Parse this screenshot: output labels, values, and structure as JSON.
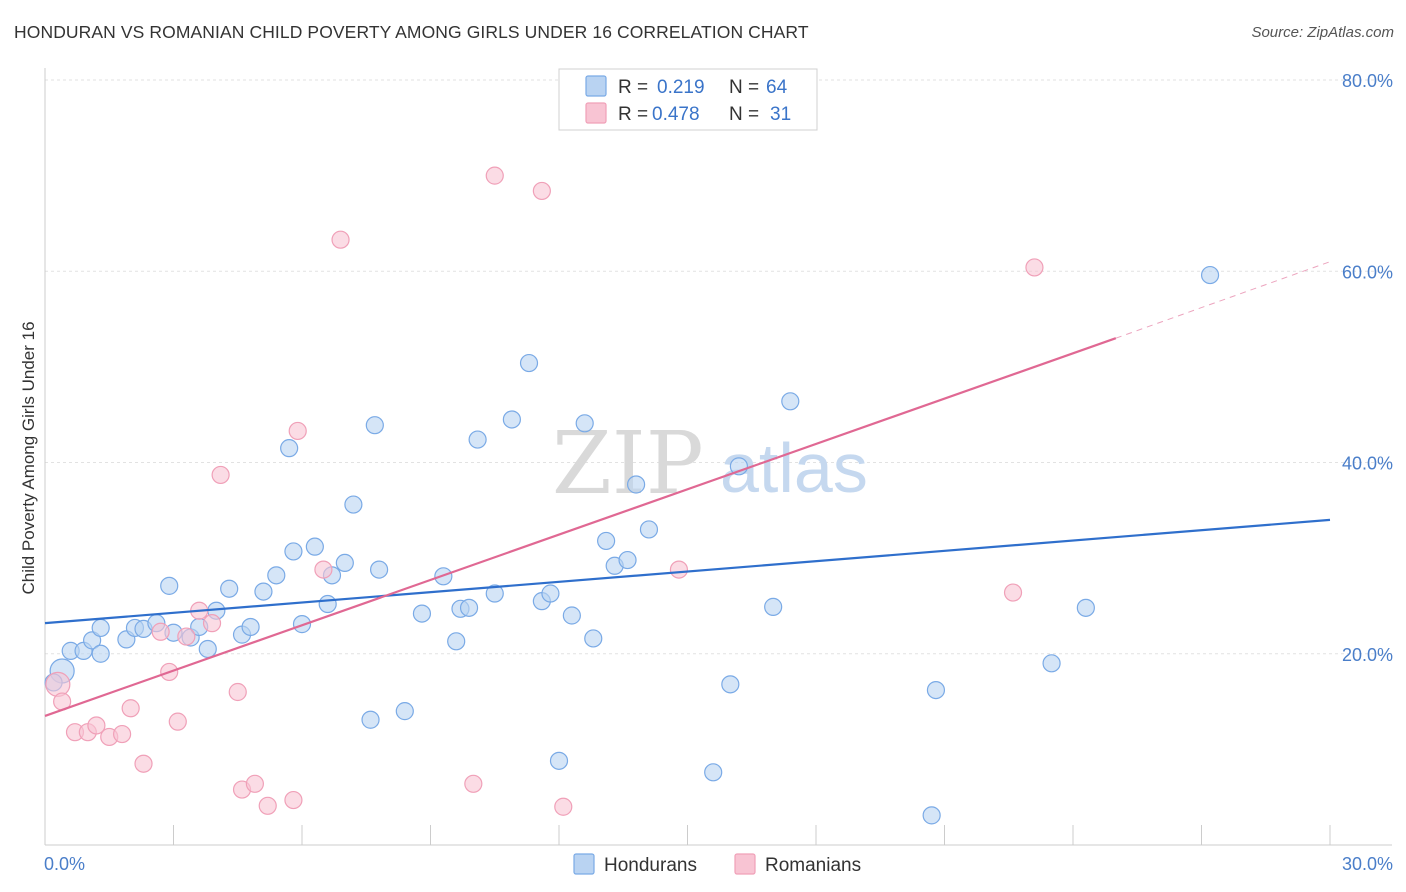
{
  "title": "HONDURAN VS ROMANIAN CHILD POVERTY AMONG GIRLS UNDER 16 CORRELATION CHART",
  "source": "Source: ZipAtlas.com",
  "watermark": {
    "zip": "ZIP",
    "atlas": "atlas"
  },
  "chart_data": {
    "type": "scatter",
    "ylabel": "Child Poverty Among Girls Under 16",
    "xlim": [
      0,
      30
    ],
    "ylim": [
      0,
      80
    ],
    "x_tick_labels": [
      {
        "value": 0,
        "label": "0.0%"
      },
      {
        "value": 30,
        "label": "30.0%"
      }
    ],
    "y_tick_labels": [
      {
        "value": 20,
        "label": "20.0%"
      },
      {
        "value": 40,
        "label": "40.0%"
      },
      {
        "value": 60,
        "label": "60.0%"
      },
      {
        "value": 80,
        "label": "80.0%"
      }
    ],
    "grid": true,
    "legend_position": "top-center",
    "series": [
      {
        "name": "Hondurans",
        "color": "#7aaae6",
        "fill": "#b9d3f2",
        "R": "0.219",
        "N": "64",
        "trend": {
          "x0": 0,
          "y0": 23.2,
          "x1": 30,
          "y1": 34.0,
          "color": "#2f6fcc"
        },
        "points": [
          [
            0.4,
            18.2
          ],
          [
            0.2,
            17.0
          ],
          [
            0.6,
            20.3
          ],
          [
            0.9,
            20.3
          ],
          [
            1.1,
            21.4
          ],
          [
            1.3,
            22.7
          ],
          [
            1.3,
            20.0
          ],
          [
            1.9,
            21.5
          ],
          [
            2.1,
            22.7
          ],
          [
            2.3,
            22.6
          ],
          [
            2.6,
            23.2
          ],
          [
            2.9,
            27.1
          ],
          [
            3.0,
            22.2
          ],
          [
            3.4,
            21.7
          ],
          [
            3.6,
            22.8
          ],
          [
            3.8,
            20.5
          ],
          [
            4.0,
            24.5
          ],
          [
            4.3,
            26.8
          ],
          [
            4.6,
            22.0
          ],
          [
            4.8,
            22.8
          ],
          [
            5.1,
            26.5
          ],
          [
            5.4,
            28.2
          ],
          [
            5.7,
            41.5
          ],
          [
            5.8,
            30.7
          ],
          [
            6.0,
            23.1
          ],
          [
            6.3,
            31.2
          ],
          [
            6.6,
            25.2
          ],
          [
            6.7,
            28.2
          ],
          [
            7.0,
            29.5
          ],
          [
            7.2,
            35.6
          ],
          [
            7.6,
            13.1
          ],
          [
            7.7,
            43.9
          ],
          [
            7.8,
            28.8
          ],
          [
            8.4,
            14.0
          ],
          [
            8.8,
            24.2
          ],
          [
            9.3,
            28.1
          ],
          [
            9.6,
            21.3
          ],
          [
            9.7,
            24.7
          ],
          [
            9.9,
            24.8
          ],
          [
            10.1,
            42.4
          ],
          [
            10.5,
            26.3
          ],
          [
            10.9,
            44.5
          ],
          [
            11.3,
            50.4
          ],
          [
            11.6,
            25.5
          ],
          [
            11.8,
            26.3
          ],
          [
            12.0,
            8.8
          ],
          [
            12.3,
            24.0
          ],
          [
            12.6,
            44.1
          ],
          [
            12.8,
            21.6
          ],
          [
            13.1,
            31.8
          ],
          [
            13.3,
            29.2
          ],
          [
            13.6,
            29.8
          ],
          [
            13.8,
            37.7
          ],
          [
            14.1,
            33.0
          ],
          [
            15.6,
            7.6
          ],
          [
            16.0,
            16.8
          ],
          [
            16.2,
            39.6
          ],
          [
            17.0,
            24.9
          ],
          [
            17.4,
            46.4
          ],
          [
            20.8,
            16.2
          ],
          [
            20.7,
            3.1
          ],
          [
            23.5,
            19.0
          ],
          [
            24.3,
            24.8
          ],
          [
            27.2,
            59.6
          ]
        ]
      },
      {
        "name": "Romanians",
        "color": "#f0a0b8",
        "fill": "#f8c4d3",
        "R": "0.478",
        "N": "31",
        "trend": {
          "x0": 0,
          "y0": 13.5,
          "x1": 25.0,
          "y1": 53.0,
          "x2": 30,
          "y2": 61.0,
          "color": "#e06893"
        },
        "points": [
          [
            0.3,
            16.8
          ],
          [
            0.4,
            15.0
          ],
          [
            0.7,
            11.8
          ],
          [
            1.0,
            11.8
          ],
          [
            1.2,
            12.5
          ],
          [
            1.5,
            11.3
          ],
          [
            1.8,
            11.6
          ],
          [
            2.0,
            14.3
          ],
          [
            2.3,
            8.5
          ],
          [
            2.7,
            22.3
          ],
          [
            2.9,
            18.1
          ],
          [
            3.1,
            12.9
          ],
          [
            3.3,
            21.8
          ],
          [
            3.6,
            24.5
          ],
          [
            3.9,
            23.2
          ],
          [
            4.1,
            38.7
          ],
          [
            4.5,
            16.0
          ],
          [
            4.6,
            5.8
          ],
          [
            4.9,
            6.4
          ],
          [
            5.2,
            4.1
          ],
          [
            5.8,
            4.7
          ],
          [
            5.9,
            43.3
          ],
          [
            6.5,
            28.8
          ],
          [
            6.9,
            63.3
          ],
          [
            10.0,
            6.4
          ],
          [
            10.5,
            70.0
          ],
          [
            11.6,
            68.4
          ],
          [
            12.1,
            4.0
          ],
          [
            14.8,
            28.8
          ],
          [
            22.6,
            26.4
          ],
          [
            23.1,
            60.4
          ]
        ]
      }
    ]
  }
}
